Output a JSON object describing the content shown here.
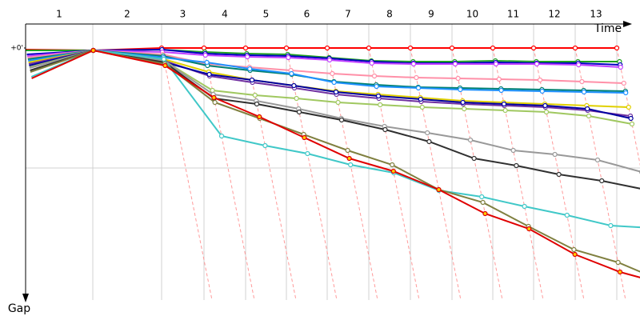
{
  "chart_data": {
    "type": "line",
    "x_label": "Time",
    "y_label": "Gap",
    "categories": [
      "1",
      "2",
      "3",
      "4",
      "5",
      "6",
      "7",
      "8",
      "9",
      "10",
      "11",
      "12",
      "13"
    ],
    "x": [
      0,
      84,
      170,
      223,
      275,
      326,
      377,
      429,
      481,
      533,
      584,
      635,
      687,
      739
    ],
    "xlim": [
      0,
      768
    ],
    "ylim": [
      -30,
      315
    ],
    "yticks": [
      {
        "value": 0,
        "label": "+0'"
      }
    ],
    "ygrid": [
      150
    ],
    "grid": true,
    "series": [
      {
        "color": "#ff0000",
        "values": [
          2,
          3,
          0,
          0,
          0,
          0,
          0,
          0,
          0,
          0,
          0,
          0,
          0,
          0
        ]
      },
      {
        "color": "#20a020",
        "values": [
          3,
          3,
          2,
          5,
          7,
          8,
          12,
          16,
          17,
          17,
          16,
          17,
          17,
          17
        ]
      },
      {
        "color": "#0000c0",
        "values": [
          8,
          3,
          2,
          7,
          9,
          10,
          13,
          17,
          19,
          19,
          18,
          19,
          19,
          21
        ]
      },
      {
        "color": "#c040ff",
        "values": [
          10,
          3,
          5,
          9,
          11,
          12,
          15,
          19,
          20,
          20,
          20,
          20,
          21,
          24
        ]
      },
      {
        "color": "#ff90a8",
        "values": [
          12,
          3,
          8,
          20,
          24,
          28,
          32,
          35,
          37,
          38,
          39,
          40,
          42,
          44
        ]
      },
      {
        "color": "#008070",
        "values": [
          14,
          3,
          10,
          22,
          28,
          33,
          42,
          46,
          49,
          50,
          51,
          52,
          53,
          54
        ]
      },
      {
        "color": "#1e90ff",
        "values": [
          16,
          3,
          12,
          18,
          26,
          32,
          43,
          48,
          50,
          52,
          53,
          54,
          55,
          56
        ]
      },
      {
        "color": "#e0d000",
        "values": [
          18,
          3,
          14,
          30,
          40,
          47,
          54,
          58,
          62,
          66,
          68,
          70,
          72,
          74
        ]
      },
      {
        "color": "#7030a0",
        "values": [
          20,
          3,
          16,
          35,
          43,
          50,
          58,
          63,
          67,
          70,
          72,
          74,
          78,
          85
        ]
      },
      {
        "color": "#0000a0",
        "values": [
          22,
          3,
          18,
          33,
          40,
          47,
          55,
          60,
          64,
          68,
          70,
          72,
          76,
          88
        ]
      },
      {
        "color": "#a0c860",
        "values": [
          24,
          3,
          16,
          53,
          59,
          63,
          68,
          71,
          74,
          76,
          78,
          80,
          85,
          95
        ]
      },
      {
        "color": "#999999",
        "values": [
          25,
          3,
          16,
          58,
          66,
          76,
          88,
          98,
          106,
          115,
          128,
          133,
          140,
          155
        ]
      },
      {
        "color": "#303030",
        "values": [
          28,
          3,
          18,
          63,
          70,
          80,
          90,
          102,
          117,
          138,
          147,
          158,
          166,
          177
        ]
      },
      {
        "color": "#40c8c8",
        "values": [
          36,
          3,
          14,
          110,
          122,
          132,
          146,
          156,
          178,
          186,
          198,
          209,
          222,
          225
        ]
      },
      {
        "color": "#808040",
        "values": [
          30,
          3,
          20,
          68,
          88,
          108,
          128,
          146,
          177,
          193,
          223,
          252,
          268,
          292
        ]
      },
      {
        "color": "#e00000",
        "values": [
          38,
          3,
          22,
          62,
          86,
          112,
          138,
          154,
          177,
          207,
          226,
          258,
          280,
          295
        ]
      }
    ]
  }
}
